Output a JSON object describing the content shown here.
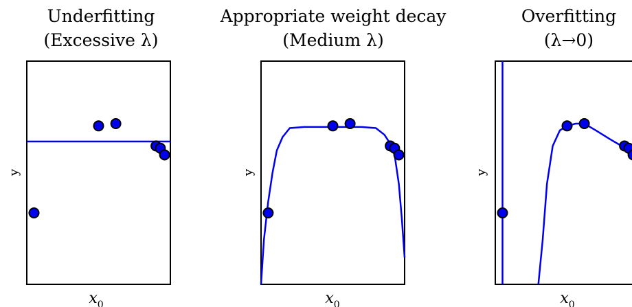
{
  "chart_data": [
    {
      "type": "line",
      "title": [
        "Underfitting",
        "(Excessive λ)"
      ],
      "xlabel": "x",
      "xlabel_sub": "0",
      "ylabel": "y",
      "xlim": [
        0,
        1
      ],
      "ylim": [
        0,
        1
      ],
      "points": [
        [
          0.05,
          0.32
        ],
        [
          0.5,
          0.71
        ],
        [
          0.62,
          0.72
        ],
        [
          0.9,
          0.62
        ],
        [
          0.93,
          0.61
        ],
        [
          0.96,
          0.58
        ]
      ],
      "curve": [
        [
          0,
          0.64
        ],
        [
          1,
          0.64
        ]
      ],
      "colors": {
        "curve": "#0000ee",
        "points": "#0000ee"
      }
    },
    {
      "type": "line",
      "title": [
        "Appropriate weight decay",
        "(Medium λ)"
      ],
      "xlabel": "x",
      "xlabel_sub": "0",
      "ylabel": "y",
      "xlim": [
        0,
        1
      ],
      "ylim": [
        0,
        1
      ],
      "points": [
        [
          0.05,
          0.32
        ],
        [
          0.5,
          0.71
        ],
        [
          0.62,
          0.72
        ],
        [
          0.9,
          0.62
        ],
        [
          0.93,
          0.61
        ],
        [
          0.96,
          0.58
        ]
      ],
      "curve": [
        [
          0.0,
          0.0
        ],
        [
          0.02,
          0.2
        ],
        [
          0.05,
          0.37
        ],
        [
          0.08,
          0.5
        ],
        [
          0.11,
          0.6
        ],
        [
          0.15,
          0.66
        ],
        [
          0.2,
          0.7
        ],
        [
          0.3,
          0.705
        ],
        [
          0.5,
          0.705
        ],
        [
          0.7,
          0.705
        ],
        [
          0.8,
          0.7
        ],
        [
          0.86,
          0.67
        ],
        [
          0.9,
          0.63
        ],
        [
          0.93,
          0.58
        ],
        [
          0.96,
          0.45
        ],
        [
          0.98,
          0.3
        ],
        [
          1.0,
          0.12
        ]
      ],
      "colors": {
        "curve": "#0000ee",
        "points": "#0000ee"
      }
    },
    {
      "type": "line",
      "title": [
        "Overfitting",
        "(λ→0)"
      ],
      "xlabel": "x",
      "xlabel_sub": "0",
      "ylabel": "y",
      "xlim": [
        0,
        1
      ],
      "ylim": [
        0,
        1
      ],
      "points": [
        [
          0.05,
          0.32
        ],
        [
          0.5,
          0.71
        ],
        [
          0.62,
          0.72
        ],
        [
          0.9,
          0.62
        ],
        [
          0.93,
          0.61
        ],
        [
          0.96,
          0.58
        ]
      ],
      "curve_segments": [
        [
          [
            0.05,
            1.0
          ],
          [
            0.05,
            0.0
          ]
        ],
        [
          [
            0.3,
            0.0
          ],
          [
            0.33,
            0.2
          ],
          [
            0.36,
            0.45
          ],
          [
            0.4,
            0.62
          ],
          [
            0.45,
            0.69
          ],
          [
            0.5,
            0.71
          ],
          [
            0.56,
            0.72
          ],
          [
            0.62,
            0.72
          ],
          [
            0.7,
            0.69
          ],
          [
            0.8,
            0.65
          ],
          [
            0.88,
            0.62
          ],
          [
            0.93,
            0.6
          ],
          [
            0.96,
            0.56
          ],
          [
            1.0,
            0.52
          ]
        ]
      ],
      "colors": {
        "curve": "#0000ee",
        "points": "#0000ee"
      }
    }
  ]
}
